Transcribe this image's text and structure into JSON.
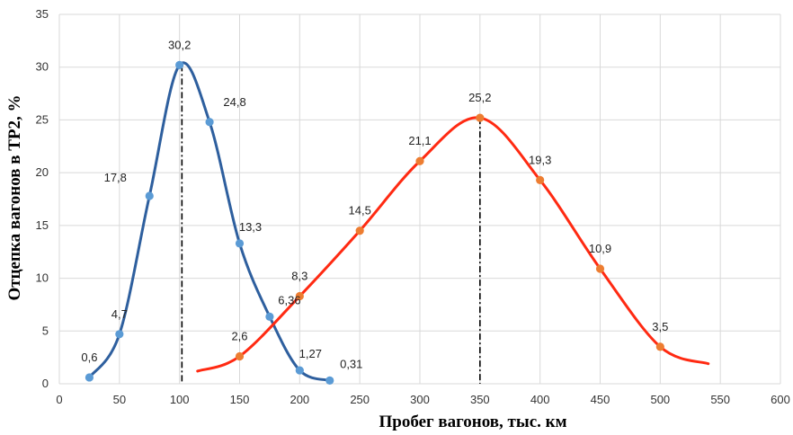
{
  "chart_data": {
    "type": "line",
    "title": "",
    "xlabel": "Пробег вагонов, тыс. км",
    "ylabel": "Отцепка вагонов в ТР2, %",
    "xlim": [
      0,
      600
    ],
    "ylim": [
      0,
      35
    ],
    "x_ticks": [
      "0",
      "50",
      "100",
      "150",
      "200",
      "250",
      "300",
      "350",
      "400",
      "450",
      "500",
      "550",
      "600"
    ],
    "y_ticks": [
      "0",
      "5",
      "10",
      "15",
      "20",
      "25",
      "30",
      "35"
    ],
    "grid": true,
    "legend": "none",
    "series": [
      {
        "color": "#2e5f9e",
        "marker_color": "#5b9bd5",
        "x": [
          25,
          50,
          75,
          100,
          125,
          150,
          175,
          200,
          225
        ],
        "y": [
          0.6,
          4.7,
          17.8,
          30.2,
          24.8,
          13.3,
          6.36,
          1.27,
          0.31
        ],
        "labels": [
          "0,6",
          "4,7",
          "17,8",
          "30,2",
          "24,8",
          "13,3",
          "6,36",
          "1,27",
          "0,31"
        ]
      },
      {
        "color": "#ff2a12",
        "marker_color": "#ed7d31",
        "x": [
          150,
          200,
          250,
          300,
          350,
          400,
          450,
          500
        ],
        "y": [
          2.6,
          8.3,
          14.5,
          21.1,
          25.2,
          19.3,
          10.9,
          3.5
        ],
        "labels": [
          "2,6",
          "8,3",
          "14,5",
          "21,1",
          "25,2",
          "19,3",
          "10,9",
          "3,5"
        ]
      }
    ],
    "reference_lines": [
      {
        "x": 102,
        "y": 30.2
      },
      {
        "x": 350,
        "y": 25.2
      }
    ]
  }
}
